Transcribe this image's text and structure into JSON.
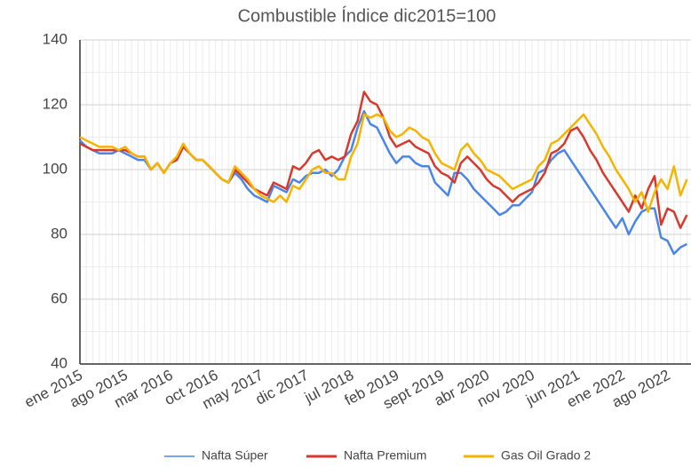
{
  "chart_data": {
    "type": "line",
    "title": "Combustible Índice dic2015=100",
    "categories": [
      "ene 2015",
      null,
      null,
      null,
      null,
      null,
      null,
      "ago 2015",
      null,
      null,
      null,
      null,
      null,
      null,
      "mar 2016",
      null,
      null,
      null,
      null,
      null,
      null,
      "oct 2016",
      null,
      null,
      null,
      null,
      null,
      null,
      "may 2017",
      null,
      null,
      null,
      null,
      null,
      null,
      "dic 2017",
      null,
      null,
      null,
      null,
      null,
      null,
      "jul 2018",
      null,
      null,
      null,
      null,
      null,
      null,
      "feb 2019",
      null,
      null,
      null,
      null,
      null,
      null,
      "sept 2019",
      null,
      null,
      null,
      null,
      null,
      null,
      "abr 2020",
      null,
      null,
      null,
      null,
      null,
      null,
      "nov 2020",
      null,
      null,
      null,
      null,
      null,
      null,
      "jun 2021",
      null,
      null,
      null,
      null,
      null,
      null,
      "ene 2022",
      null,
      null,
      null,
      null,
      null,
      null,
      "ago 2022",
      null,
      null,
      null
    ],
    "series": [
      {
        "name": "Nafta Súper",
        "color": "#4a86e8",
        "values": [
          109,
          107,
          106,
          105,
          105,
          105,
          106,
          105,
          104,
          103,
          103,
          100,
          102,
          99,
          102,
          103,
          107,
          105,
          103,
          103,
          101,
          99,
          97,
          96,
          99,
          97,
          94,
          92,
          91,
          90,
          95,
          94,
          93,
          97,
          96,
          98,
          99,
          99,
          100,
          98,
          100,
          104,
          106,
          113,
          118,
          114,
          113,
          109,
          105,
          102,
          104,
          104,
          102,
          101,
          101,
          96,
          94,
          92,
          99,
          99,
          97,
          94,
          92,
          90,
          88,
          86,
          87,
          89,
          89,
          91,
          93,
          99,
          100,
          103,
          105,
          106,
          103,
          100,
          97,
          94,
          91,
          88,
          85,
          82,
          85,
          80,
          84,
          87,
          88,
          88,
          79,
          78,
          74,
          76,
          77
        ]
      },
      {
        "name": "Nafta Premium",
        "color": "#d63a2f",
        "values": [
          108,
          107,
          106,
          106,
          106,
          106,
          106,
          106,
          105,
          104,
          104,
          100,
          102,
          99,
          102,
          103,
          107,
          105,
          103,
          103,
          101,
          99,
          97,
          96,
          100,
          98,
          96,
          94,
          93,
          92,
          96,
          95,
          94,
          101,
          100,
          102,
          105,
          106,
          103,
          104,
          103,
          104,
          111,
          115,
          124,
          121,
          120,
          116,
          110,
          107,
          108,
          109,
          107,
          106,
          105,
          101,
          99,
          98,
          96,
          102,
          104,
          102,
          100,
          97,
          95,
          94,
          92,
          90,
          92,
          93,
          94,
          96,
          99,
          105,
          106,
          108,
          112,
          113,
          110,
          106,
          103,
          99,
          96,
          93,
          90,
          87,
          92,
          88,
          94,
          98,
          83,
          88,
          87,
          82,
          86
        ]
      },
      {
        "name": "Gas Oil Grado 2",
        "color": "#f4b400",
        "values": [
          110,
          109,
          108,
          107,
          107,
          107,
          106,
          107,
          105,
          104,
          104,
          100,
          102,
          99,
          102,
          104,
          108,
          105,
          103,
          103,
          101,
          99,
          97,
          96,
          101,
          99,
          97,
          94,
          92,
          91,
          90,
          92,
          90,
          95,
          94,
          97,
          100,
          101,
          99,
          99,
          97,
          97,
          104,
          108,
          117,
          116,
          117,
          116,
          112,
          110,
          111,
          113,
          112,
          110,
          109,
          105,
          102,
          101,
          100,
          106,
          108,
          105,
          103,
          100,
          99,
          98,
          96,
          94,
          95,
          96,
          97,
          101,
          103,
          108,
          109,
          111,
          113,
          115,
          117,
          114,
          111,
          107,
          104,
          100,
          97,
          94,
          90,
          93,
          87,
          93,
          97,
          94,
          101,
          92,
          97
        ]
      }
    ],
    "ylim": [
      40,
      140
    ],
    "yticks": [
      40,
      60,
      80,
      100,
      120,
      140
    ],
    "grid": true
  }
}
